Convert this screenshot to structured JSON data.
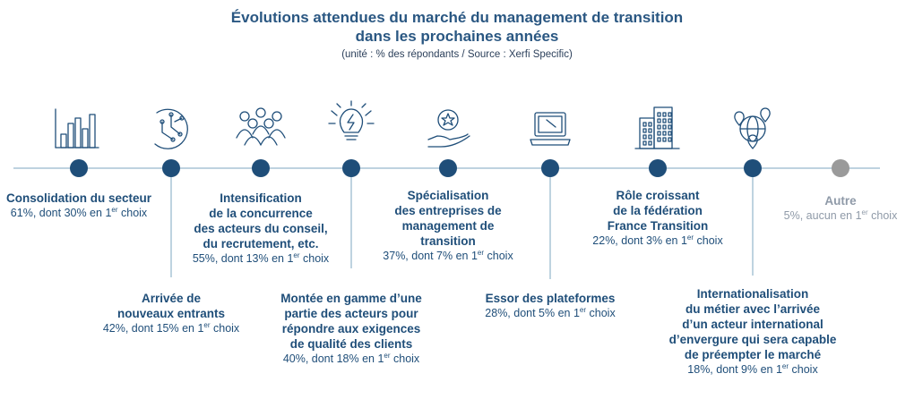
{
  "chart_data": {
    "type": "timeline",
    "title": "Évolutions attendues du marché du management de transition",
    "title_line2": "dans les prochaines années",
    "subtitle": "(unité : % des répondants / Source : Xerfi Specific)",
    "colors": {
      "primary": "#1f4e79",
      "line": "#a9c4d6",
      "other": "#9a9a9a"
    },
    "items": [
      {
        "label_lines": [
          "Consolidation du secteur"
        ],
        "value": 61,
        "first_choice": 30,
        "value_prefix": "61%, dont 30% en 1",
        "value_suffix": " choix",
        "icon": "bar-chart-icon"
      },
      {
        "label_lines": [
          "Arrivée de",
          "nouveaux entrants"
        ],
        "value": 42,
        "first_choice": 15,
        "value_prefix": "42%, dont 15% en 1",
        "value_suffix": " choix",
        "icon": "circuit-icon"
      },
      {
        "label_lines": [
          "Intensification",
          "de la concurrence",
          "des acteurs du conseil,",
          "du recrutement, etc."
        ],
        "value": 55,
        "first_choice": 13,
        "value_prefix": "55%, dont 13% en 1",
        "value_suffix": " choix",
        "icon": "people-group-icon"
      },
      {
        "label_lines": [
          "Montée en gamme d’une",
          "partie des acteurs pour",
          "répondre aux exigences",
          "de qualité des clients"
        ],
        "value": 40,
        "first_choice": 18,
        "value_prefix": "40%, dont 18% en 1",
        "value_suffix": " choix",
        "icon": "lightbulb-icon"
      },
      {
        "label_lines": [
          "Spécialisation",
          "des entreprises de",
          "management de",
          "transition"
        ],
        "value": 37,
        "first_choice": 7,
        "value_prefix": "37%, dont 7% en 1",
        "value_suffix": " choix",
        "icon": "hand-star-icon"
      },
      {
        "label_lines": [
          "Essor des plateformes"
        ],
        "value": 28,
        "first_choice": 5,
        "value_prefix": "28%, dont 5% en 1",
        "value_suffix": " choix",
        "icon": "laptop-icon"
      },
      {
        "label_lines": [
          "Rôle croissant",
          "de la fédération",
          "France Transition"
        ],
        "value": 22,
        "first_choice": 3,
        "value_prefix": "22%, dont 3% en 1",
        "value_suffix": " choix",
        "icon": "buildings-icon"
      },
      {
        "label_lines": [
          "Internationalisation",
          "du métier avec l’arrivée",
          "d’un acteur international",
          "d’envergure qui sera capable",
          "de préempter le marché"
        ],
        "value": 18,
        "first_choice": 9,
        "value_prefix": "18%, dont 9% en 1",
        "value_suffix": " choix",
        "icon": "globe-pins-icon"
      },
      {
        "label_lines": [
          "Autre"
        ],
        "value": 5,
        "first_choice": 0,
        "value_prefix": "5%, aucun en 1",
        "value_suffix": " choix",
        "icon": ""
      }
    ],
    "superscript": "er"
  }
}
